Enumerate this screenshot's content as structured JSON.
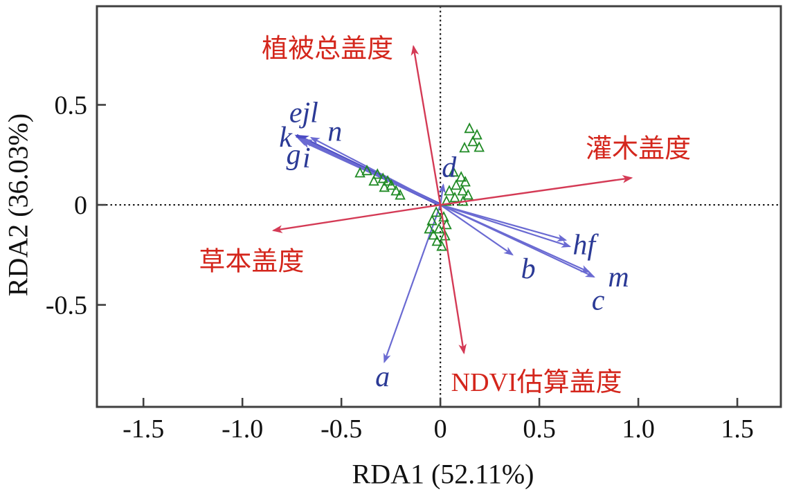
{
  "figure": {
    "background": "#ffffff"
  },
  "chart_data": {
    "type": "scatter",
    "subtype": "rda-triplot",
    "title": "",
    "xlabel": "RDA1 (52.11%)",
    "ylabel": "RDA2 (36.03%)",
    "xlim": [
      -1.735,
      1.72
    ],
    "ylim": [
      -1.01,
      0.993
    ],
    "x_tick_values": [
      -1.5,
      -1.0,
      -0.5,
      0,
      0.5,
      1.0,
      1.5
    ],
    "x_tick_labels": [
      "-1.5",
      "-1.0",
      "-0.5",
      "0",
      "0.5",
      "1.0",
      "1.5"
    ],
    "y_tick_values": [
      0.5,
      0,
      -0.5
    ],
    "y_tick_labels": [
      "0.5",
      "0",
      "-0.5"
    ],
    "grid": "dashed-zero-lines",
    "legend": "none",
    "colors": {
      "env_arrow": "#d43a55",
      "env_text": "#d4261c",
      "species_arrow": "#6a6ad2",
      "species_arrow_thick": "#4b4bc4",
      "species_text": "#2b3a96",
      "sample_marker": "#1f8a24",
      "axis": "#3f3f3f",
      "zero_line": "#1a1a1a",
      "tick_text": "#111111"
    },
    "env_arrows": [
      {
        "label": "植被总盖度",
        "tip": [
          -0.136,
          0.792
        ],
        "label_pos": [
          -0.57,
          0.782
        ]
      },
      {
        "label": "灌木盖度",
        "tip": [
          0.965,
          0.135
        ],
        "label_pos": [
          1.0,
          0.282
        ]
      },
      {
        "label": "草本盖度",
        "tip": [
          -0.843,
          -0.128
        ],
        "label_pos": [
          -0.954,
          -0.282
        ]
      },
      {
        "label": "NDVI估算盖度",
        "tip": [
          0.119,
          -0.74
        ],
        "label_pos": [
          0.486,
          -0.885
        ]
      }
    ],
    "species_arrows": [
      {
        "label": "ejl",
        "tip": [
          -0.727,
          0.346
        ],
        "label_pos": [
          -0.69,
          0.462
        ],
        "thick": true
      },
      {
        "label": "k",
        "tip": [
          -0.715,
          0.33
        ],
        "label_pos": [
          -0.782,
          0.34
        ],
        "thick": false
      },
      {
        "label": "g",
        "tip": [
          -0.7,
          0.318
        ],
        "label_pos": [
          -0.742,
          0.252
        ],
        "thick": false
      },
      {
        "label": "i",
        "tip": [
          -0.688,
          0.326
        ],
        "label_pos": [
          -0.676,
          0.236
        ],
        "thick": false
      },
      {
        "label": "n",
        "tip": [
          -0.652,
          0.336
        ],
        "label_pos": [
          -0.533,
          0.368
        ],
        "thick": false
      },
      {
        "label": "d",
        "tip": [
          0.015,
          0.1
        ],
        "label_pos": [
          0.044,
          0.188
        ],
        "thick": false
      },
      {
        "label": "b",
        "tip": [
          0.364,
          -0.249
        ],
        "label_pos": [
          0.444,
          -0.318
        ],
        "thick": false
      },
      {
        "label": "hf",
        "tip": [
          0.633,
          -0.176
        ],
        "label_pos": [
          0.726,
          -0.198
        ],
        "thick": false
      },
      {
        "label": "",
        "tip": [
          0.654,
          -0.208
        ],
        "label_pos": null,
        "thick": false
      },
      {
        "label": "m",
        "tip": [
          0.752,
          -0.336
        ],
        "label_pos": [
          0.9,
          -0.36
        ],
        "thick": false
      },
      {
        "label": "c",
        "tip": [
          0.776,
          -0.36
        ],
        "label_pos": [
          0.797,
          -0.475
        ],
        "thick": false
      },
      {
        "label": "a",
        "tip": [
          -0.283,
          -0.785
        ],
        "label_pos": [
          -0.292,
          -0.858
        ],
        "thick": false
      }
    ],
    "samples": {
      "marker": "open-triangle",
      "points": [
        [
          -0.406,
          0.159
        ],
        [
          -0.371,
          0.17
        ],
        [
          -0.318,
          0.152
        ],
        [
          -0.29,
          0.131
        ],
        [
          -0.336,
          0.118
        ],
        [
          -0.266,
          0.118
        ],
        [
          -0.283,
          0.087
        ],
        [
          -0.248,
          0.097
        ],
        [
          -0.224,
          0.069
        ],
        [
          -0.203,
          0.048
        ],
        [
          0.147,
          0.381
        ],
        [
          0.185,
          0.349
        ],
        [
          0.164,
          0.315
        ],
        [
          0.196,
          0.287
        ],
        [
          0.122,
          0.284
        ],
        [
          0.066,
          0.163
        ],
        [
          0.105,
          0.138
        ],
        [
          0.126,
          0.114
        ],
        [
          0.08,
          0.097
        ],
        [
          0.045,
          0.069
        ],
        [
          0.112,
          0.069
        ],
        [
          0.14,
          0.048
        ],
        [
          0.073,
          0.035
        ],
        [
          0.031,
          0.017
        ],
        [
          0.115,
          0.017
        ],
        [
          -0.021,
          -0.038
        ],
        [
          0.017,
          -0.062
        ],
        [
          -0.042,
          -0.08
        ],
        [
          0.031,
          -0.1
        ],
        [
          -0.007,
          -0.121
        ],
        [
          -0.056,
          -0.121
        ],
        [
          -0.035,
          -0.152
        ],
        [
          0.024,
          -0.156
        ],
        [
          -0.017,
          -0.183
        ],
        [
          0.007,
          -0.208
        ]
      ]
    }
  }
}
